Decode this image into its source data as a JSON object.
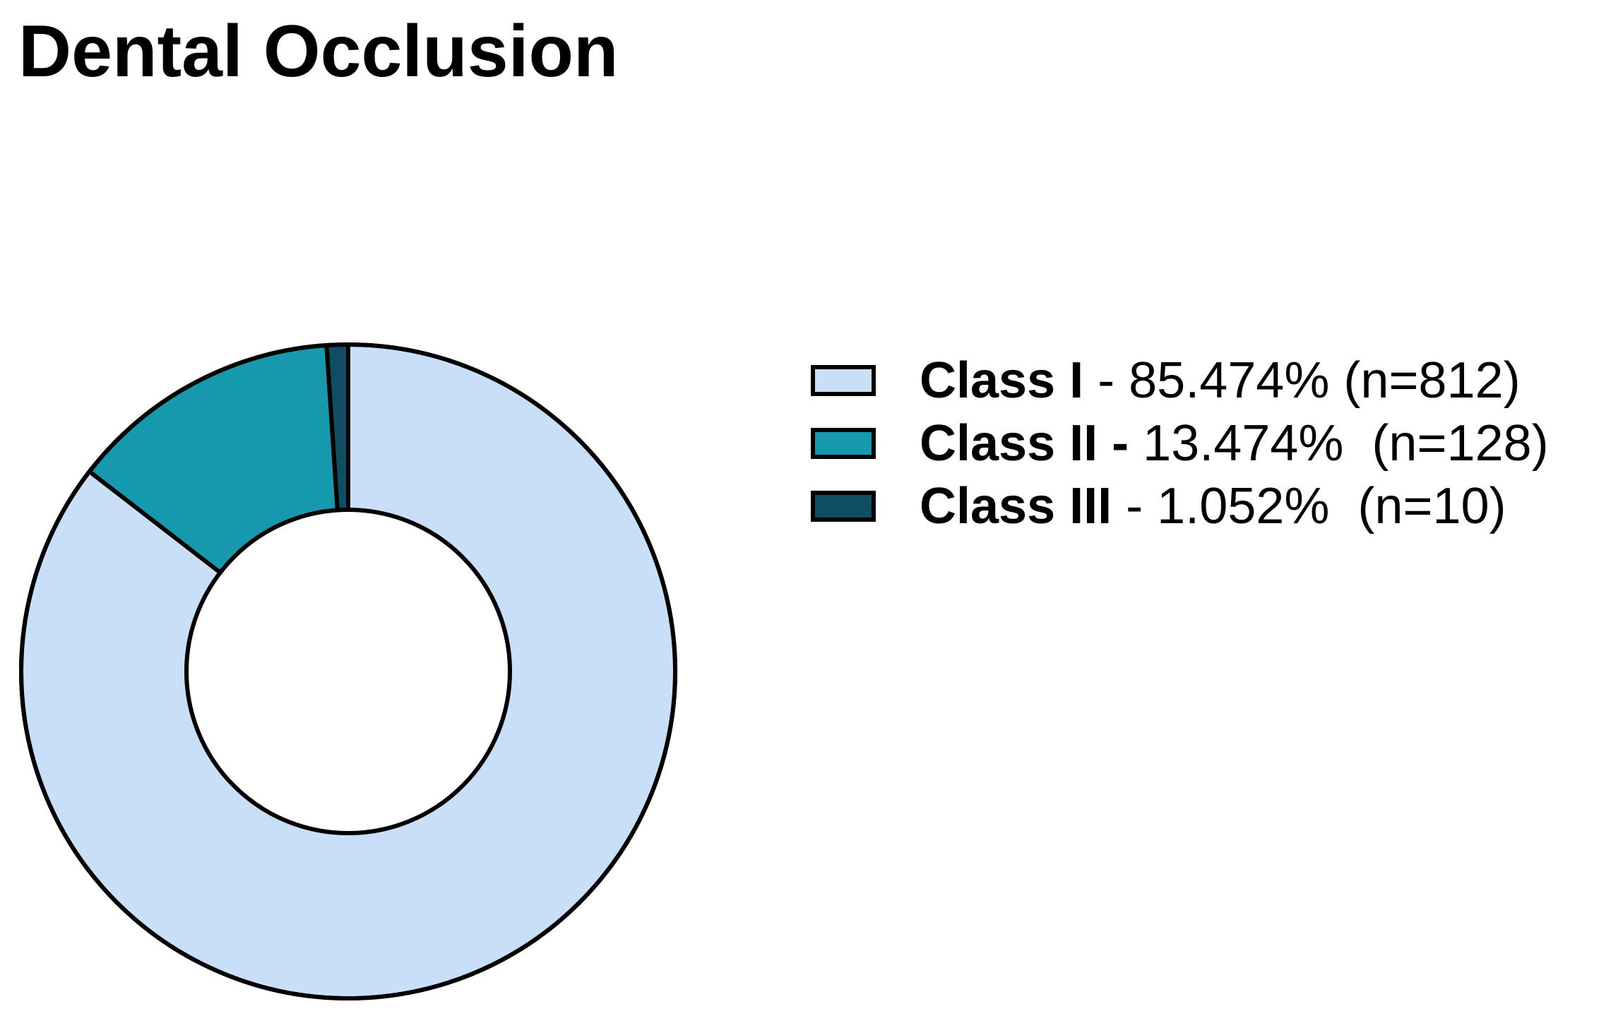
{
  "title": "Dental Occlusion",
  "colors": {
    "class_i": "#c9dff8",
    "class_ii": "#1698ad",
    "class_iii": "#0f4e62",
    "outline": "#000000"
  },
  "chart_data": {
    "type": "pie",
    "title": "Dental Occlusion",
    "donut": true,
    "legend_position": "right",
    "categories": [
      "Class I",
      "Class II",
      "Class III"
    ],
    "values": [
      85.474,
      13.474,
      1.052
    ],
    "counts": [
      812,
      128,
      10
    ],
    "colors": [
      "#c9dff8",
      "#1698ad",
      "#0f4e62"
    ]
  },
  "legend": [
    {
      "name": "Class I",
      "sep": " - ",
      "value": "85.474% (n=812)"
    },
    {
      "name": "Class II - ",
      "sep": "",
      "value": "13.474%  (n=128)"
    },
    {
      "name": "Class III",
      "sep": " - ",
      "value": "1.052%  (n=10)"
    }
  ]
}
